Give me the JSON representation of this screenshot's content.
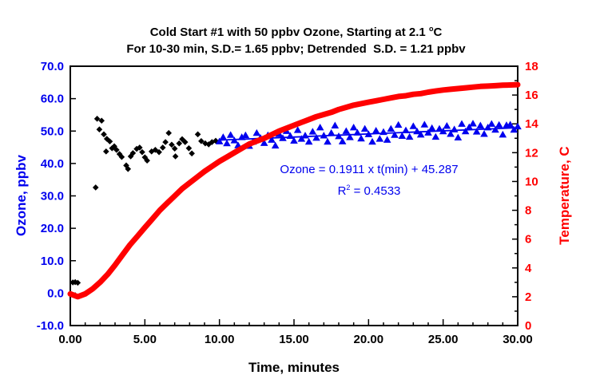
{
  "figure": {
    "title_line1_pre": "Cold Start #1 with 50 ppbv Ozone, Starting at 2.1 ",
    "title_line1_sup": "o",
    "title_line1_post": "C",
    "title_line2": "For 10-30 min, S.D.= 1.65 ppbv; Detrended  S.D. = 1.21 ppbv"
  },
  "annotation": {
    "line1": "Ozone = 0.1911 x t(min) + 45.287",
    "r2_base": "R",
    "r2_sup": "2",
    "r2_rest": " = 0.4533"
  },
  "colors": {
    "ozone_blue": "#0000EE",
    "temperature_red": "#FF0000",
    "cold_start_black": "#000000",
    "frame": "#000000"
  },
  "chart_data": {
    "type": "scatter",
    "title": "Cold Start #1 with 50 ppbv Ozone, Starting at 2.1 oC",
    "subtitle": "For 10-30 min, S.D.= 1.65 ppbv; Detrended  S.D. = 1.21 ppbv",
    "xlabel": "Time, minutes",
    "ylabel_left": "Ozone, ppbv",
    "ylabel_right": "Temperature, C",
    "xlim": [
      0,
      30
    ],
    "ylim_left": [
      -10,
      70
    ],
    "ylim_right": [
      0,
      18
    ],
    "grid": false,
    "legend": "none",
    "x_axis": {
      "tick_values": [
        0,
        5,
        10,
        15,
        20,
        25,
        30
      ],
      "tick_labels": [
        "0.00",
        "5.00",
        "10.00",
        "15.00",
        "20.00",
        "25.00",
        "30.00"
      ],
      "minor_step": 1
    },
    "y_left_axis": {
      "tick_values": [
        70,
        60,
        50,
        40,
        30,
        20,
        10,
        0,
        -10
      ],
      "tick_labels": [
        "70.0",
        "60.0",
        "50.0",
        "40.0",
        "30.0",
        "20.0",
        "10.0",
        "0.0",
        "-10.0"
      ]
    },
    "y_right_axis": {
      "tick_values": [
        18,
        16,
        14,
        12,
        10,
        8,
        6,
        4,
        2,
        0
      ],
      "tick_labels": [
        "18",
        "16",
        "14",
        "12",
        "10",
        "8",
        "6",
        "4",
        "2",
        "0"
      ],
      "minor_step": 1
    },
    "fit_line": {
      "equation": "Ozone = 0.1911 x t(min) + 45.287",
      "slope": 0.1911,
      "intercept": 45.287,
      "r_squared": 0.4533,
      "t_start": 10,
      "t_end": 30
    },
    "series": [
      {
        "name": "ozone-cold-start-0-10min",
        "marker": "diamond",
        "color": "#000000",
        "axis": "left",
        "points": [
          [
            0.17,
            3.3
          ],
          [
            0.33,
            3.4
          ],
          [
            0.5,
            3.2
          ],
          [
            1.7,
            32.6
          ],
          [
            1.8,
            53.8
          ],
          [
            2.1,
            53.2
          ],
          [
            1.95,
            50.5
          ],
          [
            2.25,
            49.0
          ],
          [
            2.45,
            47.6
          ],
          [
            2.65,
            46.8
          ],
          [
            2.4,
            43.7
          ],
          [
            2.8,
            44.7
          ],
          [
            2.95,
            45.3
          ],
          [
            3.1,
            44.2
          ],
          [
            3.3,
            42.9
          ],
          [
            3.45,
            42.0
          ],
          [
            3.75,
            39.4
          ],
          [
            3.87,
            38.3
          ],
          [
            4.05,
            42.2
          ],
          [
            4.2,
            43.2
          ],
          [
            4.45,
            44.5
          ],
          [
            4.65,
            44.9
          ],
          [
            4.82,
            43.5
          ],
          [
            5.0,
            41.9
          ],
          [
            5.15,
            40.9
          ],
          [
            5.45,
            43.7
          ],
          [
            5.7,
            44.2
          ],
          [
            5.95,
            43.5
          ],
          [
            6.2,
            44.9
          ],
          [
            6.38,
            46.6
          ],
          [
            6.6,
            49.4
          ],
          [
            6.8,
            45.8
          ],
          [
            7.0,
            44.6
          ],
          [
            7.05,
            42.2
          ],
          [
            7.3,
            46.2
          ],
          [
            7.5,
            47.5
          ],
          [
            7.7,
            46.6
          ],
          [
            7.95,
            44.7
          ],
          [
            8.15,
            43.1
          ],
          [
            8.55,
            49.0
          ],
          [
            8.78,
            46.9
          ],
          [
            9.05,
            46.2
          ],
          [
            9.28,
            45.9
          ],
          [
            9.5,
            46.6
          ],
          [
            9.75,
            47.0
          ]
        ]
      },
      {
        "name": "ozone-steady-10-30min",
        "marker": "triangle",
        "color": "#0000EE",
        "axis": "left",
        "points": [
          [
            10,
            46.8
          ],
          [
            10.25,
            48.1
          ],
          [
            10.5,
            46.2
          ],
          [
            10.75,
            48.8
          ],
          [
            11,
            47.1
          ],
          [
            11.25,
            45.6
          ],
          [
            11.5,
            48.1
          ],
          [
            11.75,
            48.7
          ],
          [
            12,
            45.4
          ],
          [
            12.25,
            46.7
          ],
          [
            12.5,
            49.4
          ],
          [
            12.75,
            47.9
          ],
          [
            13,
            46.3
          ],
          [
            13.25,
            48.7
          ],
          [
            13.5,
            47.3
          ],
          [
            13.75,
            45.5
          ],
          [
            14,
            49.1
          ],
          [
            14.25,
            47.8
          ],
          [
            14.5,
            50.0
          ],
          [
            14.75,
            48.5
          ],
          [
            15,
            47.0
          ],
          [
            15.25,
            50.3
          ],
          [
            15.5,
            47.6
          ],
          [
            15.75,
            48.6
          ],
          [
            16,
            46.7
          ],
          [
            16.25,
            49.8
          ],
          [
            16.5,
            47.9
          ],
          [
            16.75,
            51.1
          ],
          [
            17,
            48.6
          ],
          [
            17.25,
            46.7
          ],
          [
            17.5,
            49.4
          ],
          [
            17.75,
            51.7
          ],
          [
            18,
            48.4
          ],
          [
            18.25,
            46.8
          ],
          [
            18.5,
            50.0
          ],
          [
            18.75,
            48.1
          ],
          [
            19,
            51.1
          ],
          [
            19.25,
            49.5
          ],
          [
            19.5,
            47.7
          ],
          [
            19.75,
            50.7
          ],
          [
            20,
            49.0
          ],
          [
            20.25,
            46.7
          ],
          [
            20.5,
            50.1
          ],
          [
            20.75,
            47.6
          ],
          [
            21,
            49.7
          ],
          [
            21.25,
            47.3
          ],
          [
            21.5,
            50.7
          ],
          [
            21.75,
            48.8
          ],
          [
            22,
            51.9
          ],
          [
            22.25,
            48.5
          ],
          [
            22.5,
            50.2
          ],
          [
            22.75,
            48.2
          ],
          [
            23,
            51.5
          ],
          [
            23.25,
            49.9
          ],
          [
            23.5,
            48.9
          ],
          [
            23.75,
            52.0
          ],
          [
            24,
            49.5
          ],
          [
            24.25,
            50.9
          ],
          [
            24.5,
            48.2
          ],
          [
            24.75,
            50.7
          ],
          [
            25,
            49.9
          ],
          [
            25.25,
            51.6
          ],
          [
            25.5,
            49.1
          ],
          [
            25.75,
            50.5
          ],
          [
            26,
            48.0
          ],
          [
            26.25,
            52.2
          ],
          [
            26.5,
            49.9
          ],
          [
            26.75,
            51.2
          ],
          [
            27,
            52.3
          ],
          [
            27.25,
            49.8
          ],
          [
            27.5,
            51.7
          ],
          [
            27.75,
            49.1
          ],
          [
            28,
            51.1
          ],
          [
            28.25,
            52.2
          ],
          [
            28.5,
            50.4
          ],
          [
            28.75,
            51.9
          ],
          [
            29,
            48.9
          ],
          [
            29.25,
            51.8
          ],
          [
            29.5,
            52.0
          ],
          [
            29.75,
            50.4
          ],
          [
            30,
            51.4
          ]
        ]
      },
      {
        "name": "temperature-curve",
        "marker": "thick-line",
        "color": "#FF0000",
        "axis": "right",
        "points": [
          [
            0,
            2.2
          ],
          [
            0.5,
            2.0
          ],
          [
            1,
            2.2
          ],
          [
            1.5,
            2.55
          ],
          [
            2,
            3.0
          ],
          [
            2.5,
            3.55
          ],
          [
            3,
            4.2
          ],
          [
            3.5,
            4.9
          ],
          [
            4,
            5.6
          ],
          [
            4.5,
            6.2
          ],
          [
            5,
            6.8
          ],
          [
            5.5,
            7.4
          ],
          [
            6,
            8.0
          ],
          [
            6.5,
            8.5
          ],
          [
            7,
            9.0
          ],
          [
            7.5,
            9.5
          ],
          [
            8,
            9.9
          ],
          [
            8.5,
            10.3
          ],
          [
            9,
            10.7
          ],
          [
            9.5,
            11.05
          ],
          [
            10,
            11.4
          ],
          [
            10.5,
            11.7
          ],
          [
            11,
            12.0
          ],
          [
            11.5,
            12.3
          ],
          [
            12,
            12.6
          ],
          [
            12.5,
            12.8
          ],
          [
            13,
            13.0
          ],
          [
            13.5,
            13.25
          ],
          [
            14,
            13.5
          ],
          [
            14.5,
            13.7
          ],
          [
            15,
            13.9
          ],
          [
            15.5,
            14.1
          ],
          [
            16,
            14.3
          ],
          [
            16.5,
            14.5
          ],
          [
            17,
            14.65
          ],
          [
            17.5,
            14.8
          ],
          [
            18,
            15.0
          ],
          [
            18.5,
            15.15
          ],
          [
            19,
            15.3
          ],
          [
            19.5,
            15.4
          ],
          [
            20,
            15.5
          ],
          [
            20.5,
            15.6
          ],
          [
            21,
            15.7
          ],
          [
            21.5,
            15.8
          ],
          [
            22,
            15.9
          ],
          [
            22.5,
            15.95
          ],
          [
            23,
            16.05
          ],
          [
            23.5,
            16.1
          ],
          [
            24,
            16.2
          ],
          [
            24.5,
            16.28
          ],
          [
            25,
            16.35
          ],
          [
            25.5,
            16.4
          ],
          [
            26,
            16.45
          ],
          [
            26.5,
            16.5
          ],
          [
            27,
            16.55
          ],
          [
            27.5,
            16.6
          ],
          [
            28,
            16.62
          ],
          [
            28.5,
            16.65
          ],
          [
            29,
            16.68
          ],
          [
            29.5,
            16.7
          ],
          [
            30,
            16.72
          ]
        ]
      }
    ]
  }
}
